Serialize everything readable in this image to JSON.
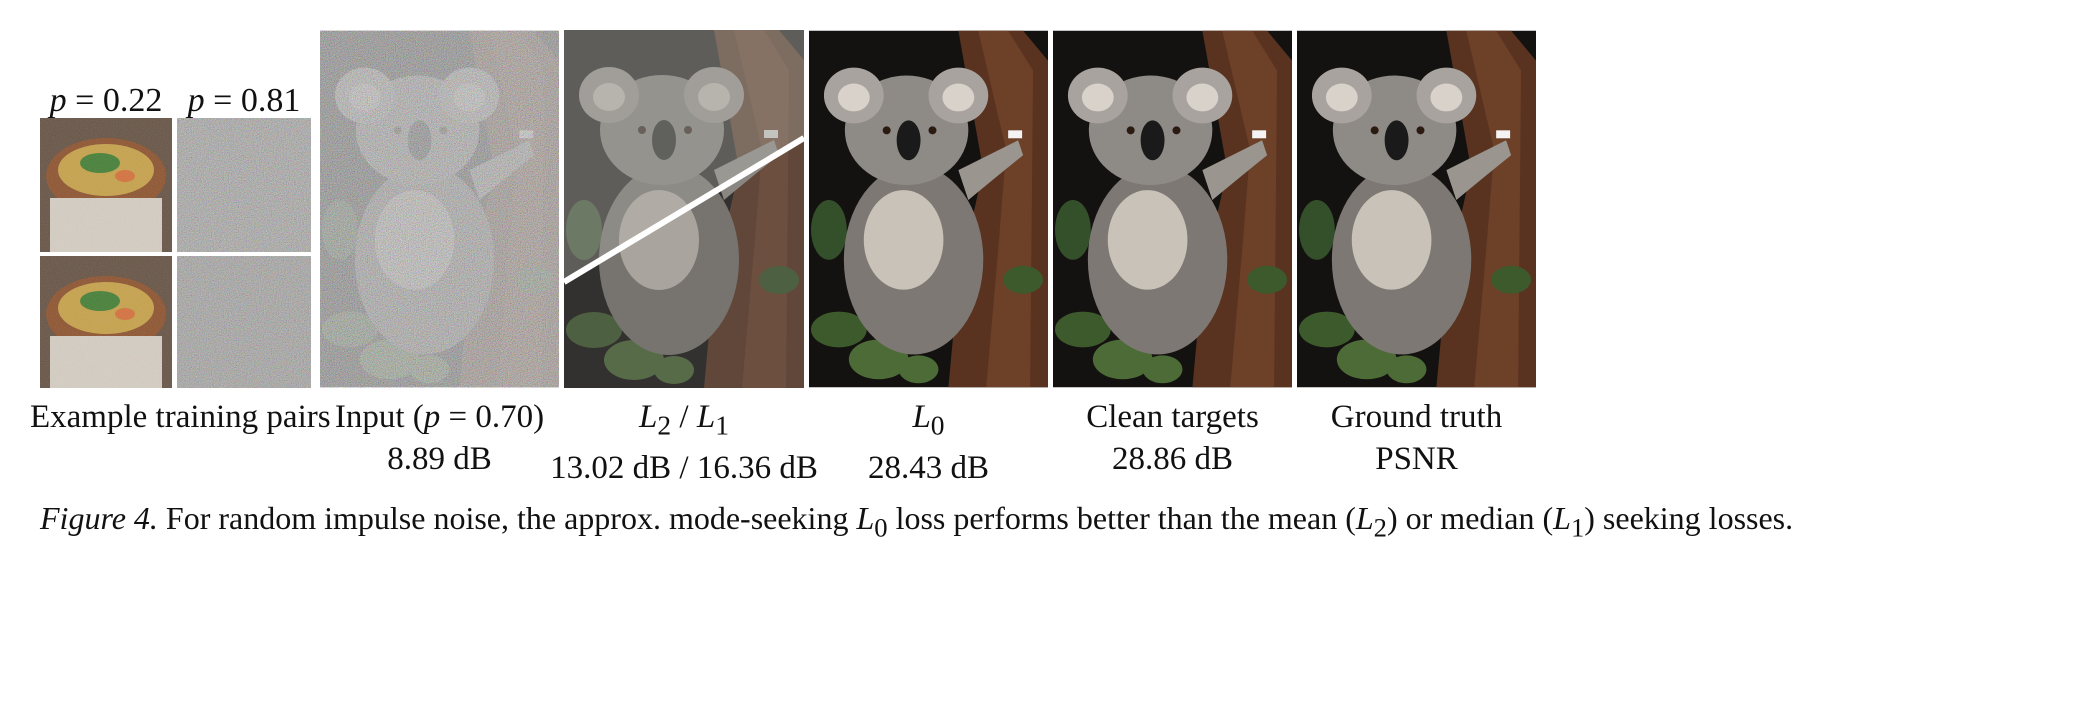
{
  "training_pairs": {
    "header_left": {
      "var": "p",
      "value": "0.22"
    },
    "header_right": {
      "var": "p",
      "value": "0.81"
    },
    "label": "Example training pairs"
  },
  "panels": [
    {
      "name": "input",
      "label_prefix": "Input (",
      "label_var": "p",
      "label_value": "0.70",
      "label_suffix": ")",
      "psnr": "8.89 dB"
    },
    {
      "name": "l2-l1",
      "label_a": "L",
      "label_a_sub": "2",
      "label_sep": " / ",
      "label_b": "L",
      "label_b_sub": "1",
      "psnr": "13.02 dB / 16.36 dB"
    },
    {
      "name": "l0",
      "label_a": "L",
      "label_a_sub": "0",
      "psnr": "28.43 dB"
    },
    {
      "name": "clean-targets",
      "label": "Clean targets",
      "psnr": "28.86 dB"
    },
    {
      "name": "ground-truth",
      "label": "Ground truth",
      "psnr": "PSNR"
    }
  ],
  "caption": {
    "fig": "Figure 4.",
    "t1": " For random impulse noise, the approx. mode-seeking ",
    "v1": "L",
    "s1": "0",
    "t2": " loss performs better than the mean (",
    "v2": "L",
    "s2": "2",
    "t3": ") or median (",
    "v3": "L",
    "s3": "1",
    "t4": ") seeking losses."
  },
  "colors": {
    "bark": "#5a3320",
    "koala_gray": "#8e8a86",
    "foliage": "#3d5a2c",
    "background_dark": "#141210",
    "divider": "#ffffff"
  }
}
